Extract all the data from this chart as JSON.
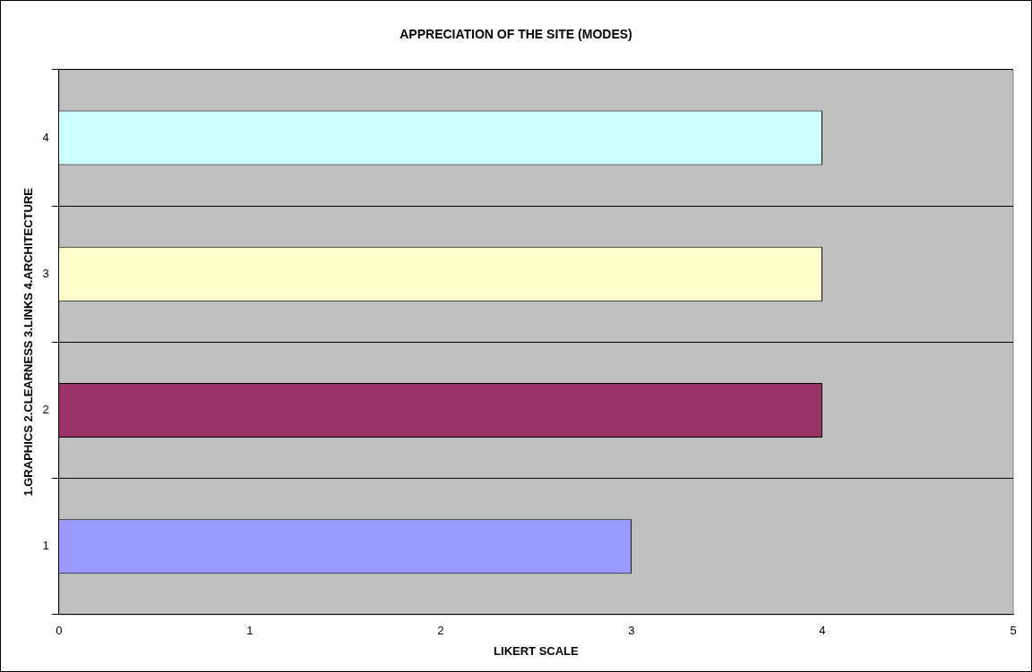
{
  "chart_data": {
    "type": "bar",
    "orientation": "horizontal",
    "title": "APPRECIATION OF THE SITE (MODES)",
    "xlabel": "LIKERT SCALE",
    "ylabel": "1.GRAPHICS 2.CLEARNESS 3.LINKS 4.ARCHITECTURE",
    "categories": [
      "4",
      "3",
      "2",
      "1"
    ],
    "values": [
      4,
      4,
      4,
      3
    ],
    "colors": [
      "#ccffff",
      "#ffffcc",
      "#993366",
      "#9999ff"
    ],
    "xlim": [
      0,
      5
    ],
    "xticks": [
      0,
      1,
      2,
      3,
      4,
      5
    ],
    "grid": "y",
    "legend": false
  }
}
